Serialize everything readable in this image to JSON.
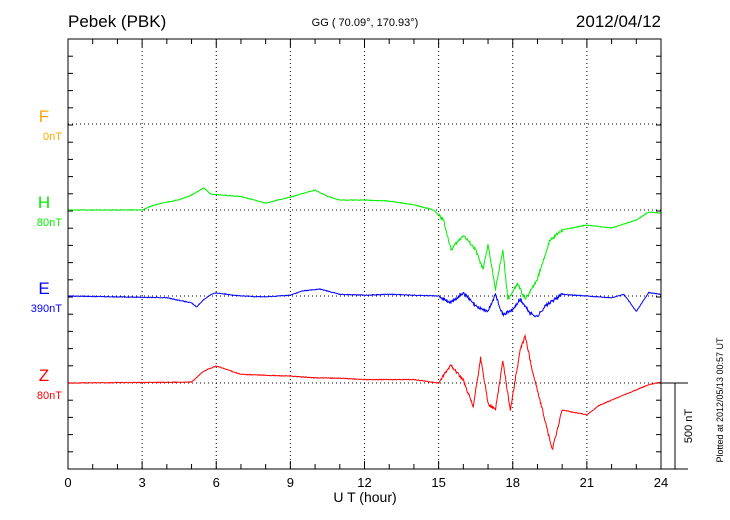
{
  "chart_data": {
    "type": "line",
    "title": "Pebek (PBK)",
    "subtitle": "GG ( 70.09°, 170.93°)",
    "date": "2012/04/12",
    "xlabel": "U T (hour)",
    "xlim": [
      0,
      24
    ],
    "xticks": [
      "0",
      "3",
      "6",
      "9",
      "12",
      "15",
      "18",
      "21",
      "24"
    ],
    "scale_label": "500 nT",
    "scale_nT": 500,
    "footer": "Plotted at 2012/05/13 00:57 UT",
    "series": [
      {
        "name": "F",
        "offset_label": "0nT",
        "color": "#ffa500",
        "x": [],
        "values": []
      },
      {
        "name": "H",
        "offset_label": "80nT",
        "color": "#00ee00",
        "x": [
          0,
          3,
          3.5,
          4.5,
          5,
          5.5,
          5.8,
          6,
          7,
          8,
          9,
          10,
          10.5,
          11,
          12,
          13,
          14,
          14.8,
          15.2,
          15.5,
          16,
          16.5,
          16.8,
          17,
          17.3,
          17.6,
          17.8,
          18.2,
          18.5,
          19,
          19.5,
          20,
          21,
          22,
          23,
          23.5,
          24
        ],
        "values": [
          0,
          0,
          30,
          60,
          87,
          128,
          90,
          90,
          78,
          40,
          75,
          116,
          80,
          58,
          58,
          52,
          30,
          0,
          -58,
          -232,
          -145,
          -232,
          -348,
          -200,
          -464,
          -232,
          -520,
          -430,
          -520,
          -400,
          -175,
          -116,
          -87,
          -105,
          -58,
          -12,
          -18
        ]
      },
      {
        "name": "E",
        "offset_label": "390nT",
        "color": "#0000ff",
        "x": [
          0,
          4,
          5,
          5.2,
          5.5,
          5.8,
          6,
          7,
          8,
          9,
          9.5,
          10.2,
          11,
          12,
          13,
          14,
          15,
          15.5,
          16,
          16.5,
          17,
          17.3,
          17.6,
          18,
          18.3,
          18.7,
          19,
          19.3,
          19.6,
          20,
          21,
          22,
          22.5,
          23,
          23.5,
          24
        ],
        "values": [
          0,
          -10,
          -40,
          -64,
          -20,
          10,
          18,
          0,
          -5,
          5,
          30,
          40,
          10,
          5,
          10,
          5,
          0,
          -40,
          20,
          -60,
          -90,
          10,
          -110,
          -80,
          -20,
          -100,
          -120,
          -60,
          -30,
          10,
          0,
          -10,
          10,
          -90,
          20,
          10
        ]
      },
      {
        "name": "Z",
        "offset_label": "80nT",
        "color": "#ff0000",
        "x": [
          0,
          5,
          5.5,
          6,
          7,
          8,
          9,
          10,
          11,
          12,
          14,
          15,
          15.5,
          16,
          16.4,
          16.7,
          17,
          17.3,
          17.6,
          17.9,
          18.3,
          18.5,
          18.8,
          19.3,
          19.6,
          20,
          21,
          21.5,
          22,
          23,
          23.5,
          24
        ],
        "values": [
          0,
          5,
          70,
          99,
          50,
          45,
          40,
          30,
          28,
          20,
          20,
          0,
          105,
          15,
          -140,
          145,
          -120,
          -155,
          130,
          -157,
          190,
          273,
          70,
          -215,
          -389,
          -157,
          -185,
          -130,
          -100,
          -40,
          -10,
          5
        ]
      }
    ]
  }
}
